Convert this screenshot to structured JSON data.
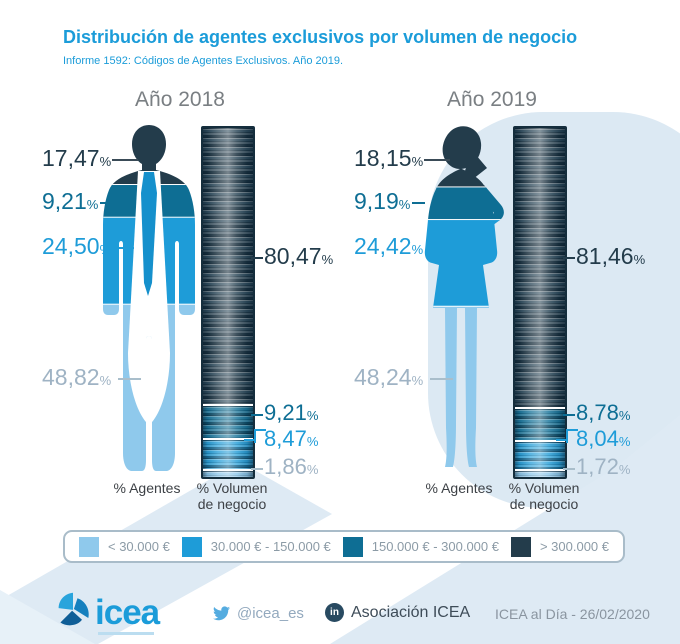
{
  "chart_data": {
    "type": "bar",
    "title": "Distribución de agentes exclusivos por volumen de negocio",
    "subtitle": "Informe 1592: Códigos de Agentes Exclusivos. Año 2019.",
    "unit": "%",
    "categories_top_to_bottom": [
      "> 300.000 €",
      "150.000 € - 300.000 €",
      "30.000 € - 150.000 €",
      "< 30.000 €"
    ],
    "colors_top_to_bottom": [
      "#233C4B",
      "#0E6E94",
      "#1E9CD8",
      "#8FC9EC"
    ],
    "groups": [
      {
        "year": "Año 2018",
        "agents_values": [
          17.47,
          9.21,
          24.5,
          48.82
        ],
        "agents_labels": [
          "17,47",
          "9,21",
          "24,50",
          "48,82"
        ],
        "volume_values": [
          80.47,
          9.21,
          8.47,
          1.86
        ],
        "volume_labels": [
          "80,47",
          "9,21",
          "8,47",
          "1,86"
        ],
        "axis_agents": "% Agentes",
        "axis_volume": "% Volumen\nde negocio"
      },
      {
        "year": "Año 2019",
        "agents_values": [
          18.15,
          9.19,
          24.42,
          48.24
        ],
        "agents_labels": [
          "18,15",
          "9,19",
          "24,42",
          "48,24"
        ],
        "volume_values": [
          81.46,
          8.78,
          8.04,
          1.72
        ],
        "volume_labels": [
          "81,46",
          "8,78",
          "8,04",
          "1,72"
        ],
        "axis_agents": "% Agentes",
        "axis_volume": "% Volumen\nde negocio"
      }
    ],
    "legend": [
      {
        "label": "< 30.000 €",
        "color": "#8FC9EC"
      },
      {
        "label": "30.000 € - 150.000 €",
        "color": "#1E9CD8"
      },
      {
        "label": "150.000 € - 300.000 €",
        "color": "#0E6E94"
      },
      {
        "label": "> 300.000 €",
        "color": "#233C4B"
      }
    ],
    "legend_position": "bottom",
    "grid": false
  },
  "footer": {
    "brand": "icea",
    "twitter_handle": "@icea_es",
    "linkedin_badge": "in",
    "linkedin_label": "Asociación ICEA",
    "edition": "ICEA al Día - 26/02/2020"
  }
}
